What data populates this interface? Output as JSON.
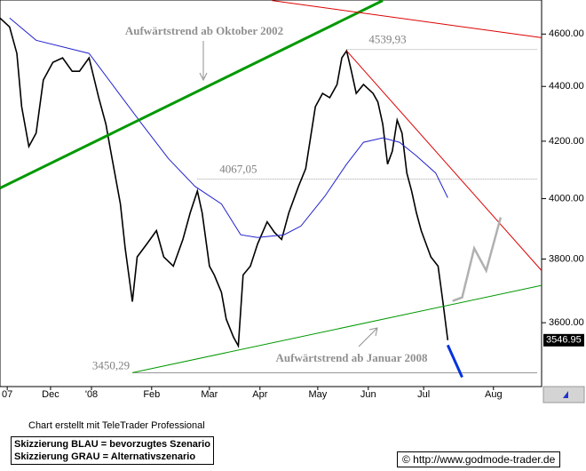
{
  "chart_data": {
    "type": "line",
    "log_scale": true,
    "xlim": [
      0,
      225
    ],
    "ylim": [
      3410,
      4735
    ],
    "xticks": [
      {
        "value": 3,
        "label": "07"
      },
      {
        "value": 21,
        "label": "Dec"
      },
      {
        "value": 38,
        "label": "'08"
      },
      {
        "value": 63,
        "label": "Feb"
      },
      {
        "value": 87,
        "label": "Mar"
      },
      {
        "value": 108,
        "label": "Apr"
      },
      {
        "value": 132,
        "label": "May"
      },
      {
        "value": 153,
        "label": "Jun"
      },
      {
        "value": 176,
        "label": "Jul"
      },
      {
        "value": 205,
        "label": "Aug"
      }
    ],
    "yticks": [
      {
        "value": 3600,
        "label": "3600.00"
      },
      {
        "value": 3800,
        "label": "3800.00"
      },
      {
        "value": 4000,
        "label": "4000.00"
      },
      {
        "value": 4200,
        "label": "4200.00"
      },
      {
        "value": 4400,
        "label": "4400.00"
      },
      {
        "value": 4600,
        "label": "4600.00"
      }
    ],
    "series": [
      {
        "color": "#000000",
        "width": 1.6,
        "x": [
          0,
          4,
          7,
          9,
          12,
          15,
          18,
          22,
          26,
          30,
          33,
          37,
          41,
          44,
          46,
          50,
          52,
          54,
          55,
          57,
          61,
          65,
          68,
          72,
          76,
          79,
          82,
          84,
          87,
          89,
          92,
          94,
          97,
          99,
          101,
          104,
          107,
          111,
          114,
          117,
          120,
          124,
          127,
          131,
          134,
          137,
          140,
          142,
          144,
          146,
          148,
          151,
          155,
          157,
          159,
          161,
          163,
          165,
          167,
          169,
          171,
          173,
          175,
          177,
          179,
          182,
          183,
          184,
          186
        ],
        "values": [
          4663,
          4628,
          4525,
          4325,
          4181,
          4229,
          4424,
          4491,
          4508,
          4457,
          4457,
          4508,
          4358,
          4261,
          4165,
          3982,
          3835,
          3721,
          3665,
          3807,
          3849,
          3893,
          3807,
          3777,
          3864,
          3952,
          4026,
          3952,
          3777,
          3749,
          3694,
          3611,
          3556,
          3530,
          3749,
          3777,
          3849,
          3922,
          3887,
          3864,
          3952,
          4042,
          4103,
          4325,
          4374,
          4358,
          4407,
          4508,
          4535,
          4457,
          4374,
          4407,
          4374,
          4342,
          4261,
          4119,
          4165,
          4276,
          4229,
          4088,
          4026,
          3952,
          3893,
          3849,
          3807,
          3777,
          3721,
          3665,
          3547
        ]
      },
      {
        "color": "#2222cc",
        "width": 1,
        "x": [
          4,
          15,
          37,
          48,
          59,
          70,
          81,
          92,
          100,
          107,
          118,
          125,
          135,
          144,
          151,
          159,
          166,
          173,
          181,
          186
        ],
        "values": [
          4663,
          4576,
          4525,
          4391,
          4261,
          4138,
          4042,
          3982,
          3879,
          3870,
          3879,
          3908,
          4009,
          4119,
          4196,
          4212,
          4196,
          4148,
          4088,
          4003
        ]
      },
      {
        "color": "#009900",
        "width": 3,
        "x": [
          0,
          159
        ],
        "values": [
          4036,
          4733
        ]
      },
      {
        "color": "#009900",
        "width": 1,
        "x": [
          55,
          225
        ],
        "values": [
          3450.29,
          3716
        ]
      },
      {
        "color": "#dd0000",
        "width": 1,
        "x": [
          113,
          225
        ],
        "values": [
          4733,
          4586
        ]
      },
      {
        "color": "#dd0000",
        "width": 1,
        "x": [
          144,
          225
        ],
        "values": [
          4535,
          3763
        ]
      },
      {
        "color": "#0033dd",
        "width": 3,
        "x": [
          186,
          192
        ],
        "values": [
          3532,
          3437
        ]
      },
      {
        "color": "#b0b0b0",
        "width": 2.5,
        "x": [
          188,
          192,
          197,
          202,
          208
        ],
        "values": [
          3667,
          3678,
          3835,
          3763,
          3937
        ]
      }
    ],
    "levels": [
      {
        "value": 4539.93,
        "label": "4539,93"
      },
      {
        "value": 4067.05,
        "label": "4067,05"
      },
      {
        "value": 3450.29,
        "label": "3450,29"
      }
    ],
    "last_value": 3546.95,
    "annotations": [
      "Aufwärtstrend ab Oktober 2002",
      "Aufwärtstrend ab Januar 2008"
    ]
  },
  "footer": {
    "credit": "Chart erstellt mit TeleTrader Professional",
    "legend_blue": "Skizzierung BLAU = bevorzugtes Szenario",
    "legend_grey": "Skizzierung GRAU = Alternativszenario",
    "source": "© http://www.godmode-trader.de"
  }
}
